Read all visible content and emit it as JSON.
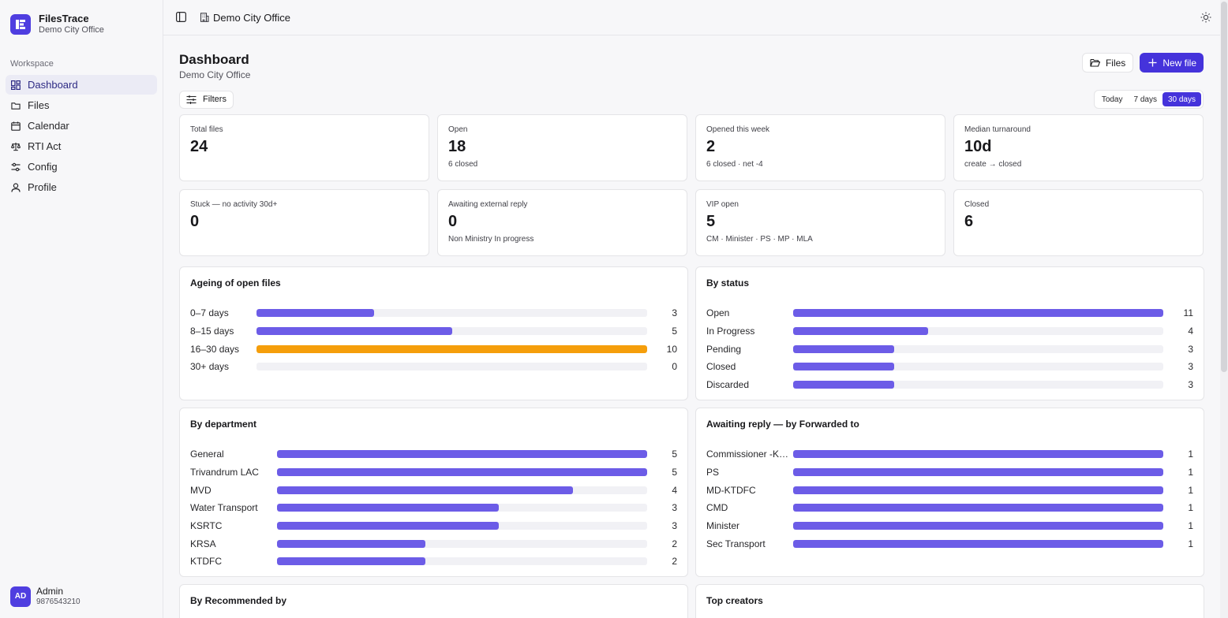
{
  "brand": {
    "name": "FilesTrace",
    "office": "Demo City Office"
  },
  "sidebar": {
    "section_label": "Workspace",
    "items": [
      {
        "label": "Dashboard",
        "icon": "dashboard-icon",
        "active": true
      },
      {
        "label": "Files",
        "icon": "folder-icon"
      },
      {
        "label": "Calendar",
        "icon": "calendar-icon"
      },
      {
        "label": "RTI Act",
        "icon": "scale-icon"
      },
      {
        "label": "Config",
        "icon": "sliders-icon"
      },
      {
        "label": "Profile",
        "icon": "user-icon"
      }
    ]
  },
  "user": {
    "initials": "AD",
    "name": "Admin",
    "phone": "9876543210"
  },
  "topbar": {
    "office": "Demo City Office"
  },
  "page": {
    "title": "Dashboard",
    "subtitle": "Demo City Office",
    "files_button": "Files",
    "new_file_button": "New file",
    "filters_button": "Filters",
    "ranges": [
      "Today",
      "7 days",
      "30 days"
    ],
    "active_range": "30 days"
  },
  "stats": [
    {
      "label": "Total files",
      "value": "24",
      "sub": ""
    },
    {
      "label": "Open",
      "value": "18",
      "sub": "6 closed"
    },
    {
      "label": "Opened this week",
      "value": "2",
      "sub": "6 closed · net -4"
    },
    {
      "label": "Median turnaround",
      "value": "10d",
      "sub": "create → closed"
    },
    {
      "label": "Stuck — no activity 30d+",
      "value": "0",
      "sub": ""
    },
    {
      "label": "Awaiting external reply",
      "value": "0",
      "sub": "Non Ministry In progress"
    },
    {
      "label": "VIP open",
      "value": "5",
      "sub": "CM · Minister · PS · MP · MLA"
    },
    {
      "label": "Closed",
      "value": "6",
      "sub": ""
    }
  ],
  "colors": {
    "accent": "#4533db",
    "bar": "#6c5ce7",
    "warn": "#f59e0b",
    "track": "#f1f1f5"
  },
  "panels": {
    "ageing": {
      "title": "Ageing of open files",
      "rows": [
        {
          "label": "0–7 days",
          "count": "3",
          "fraction": 0.3
        },
        {
          "label": "8–15 days",
          "count": "5",
          "fraction": 0.5
        },
        {
          "label": "16–30 days",
          "count": "10",
          "fraction": 1.0,
          "highlight": true
        },
        {
          "label": "30+ days",
          "count": "0",
          "fraction": 0
        }
      ]
    },
    "status": {
      "title": "By status",
      "rows": [
        {
          "label": "Open",
          "count": "11",
          "fraction": 1.0
        },
        {
          "label": "In Progress",
          "count": "4",
          "fraction": 0.3636
        },
        {
          "label": "Pending",
          "count": "3",
          "fraction": 0.2727
        },
        {
          "label": "Closed",
          "count": "3",
          "fraction": 0.2727
        },
        {
          "label": "Discarded",
          "count": "3",
          "fraction": 0.2727
        }
      ]
    },
    "department": {
      "title": "By department",
      "rows": [
        {
          "label": "General",
          "count": "5",
          "fraction": 1.0
        },
        {
          "label": "Trivandrum LAC",
          "count": "5",
          "fraction": 1.0
        },
        {
          "label": "MVD",
          "count": "4",
          "fraction": 0.8
        },
        {
          "label": "Water Transport",
          "count": "3",
          "fraction": 0.6
        },
        {
          "label": "KSRTC",
          "count": "3",
          "fraction": 0.6
        },
        {
          "label": "KRSA",
          "count": "2",
          "fraction": 0.4
        },
        {
          "label": "KTDFC",
          "count": "2",
          "fraction": 0.4
        }
      ]
    },
    "forwarded": {
      "title": "Awaiting reply — by Forwarded to",
      "rows": [
        {
          "label": "Commissioner -KR…",
          "count": "1",
          "fraction": 1.0
        },
        {
          "label": "PS",
          "count": "1",
          "fraction": 1.0
        },
        {
          "label": "MD-KTDFC",
          "count": "1",
          "fraction": 1.0
        },
        {
          "label": "CMD",
          "count": "1",
          "fraction": 1.0
        },
        {
          "label": "Minister",
          "count": "1",
          "fraction": 1.0
        },
        {
          "label": "Sec Transport",
          "count": "1",
          "fraction": 1.0
        }
      ]
    },
    "recommended": {
      "title": "By Recommended by"
    },
    "creators": {
      "title": "Top creators"
    }
  }
}
